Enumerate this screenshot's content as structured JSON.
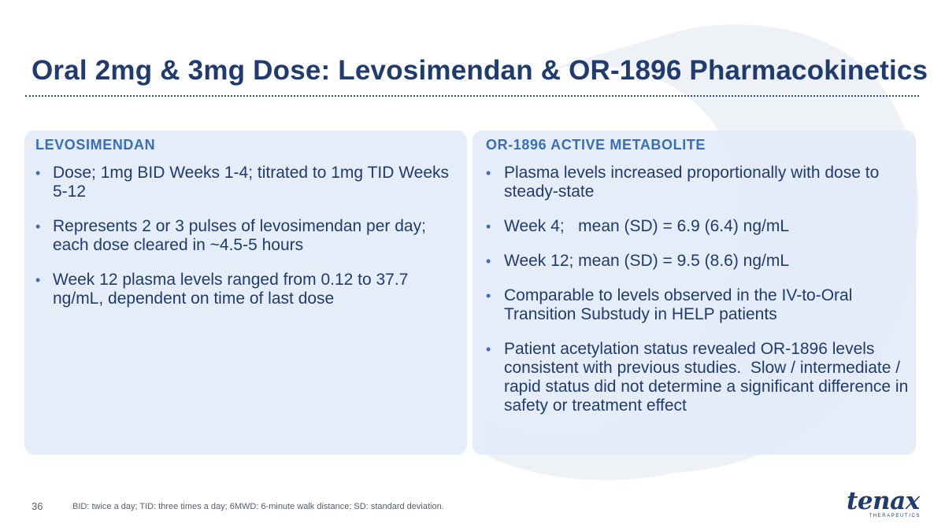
{
  "slide": {
    "title": "Oral 2mg & 3mg Dose: Levosimendan & OR-1896 Pharmacokinetics",
    "page_number": "36",
    "footnote": "BID: twice a day; TID: three times a day; 6MWD: 6-minute walk distance; SD: standard deviation."
  },
  "left_panel": {
    "heading": "LEVOSIMENDAN",
    "bullets": [
      "Dose; 1mg BID Weeks 1-4; titrated to 1mg TID Weeks 5-12",
      "Represents 2 or 3 pulses of levosimendan per day; each dose cleared in ~4.5-5 hours",
      "Week 12 plasma levels ranged from 0.12 to 37.7 ng/mL, dependent on time of last dose"
    ]
  },
  "right_panel": {
    "heading": "OR-1896 ACTIVE METABOLITE",
    "bullets": [
      "Plasma levels increased proportionally with dose to steady-state",
      "Week 4;   mean (SD) = 6.9 (6.4) ng/mL",
      "Week 12; mean (SD) = 9.5 (8.6) ng/mL",
      "Comparable to levels observed in the IV-to-Oral Transition Substudy in HELP patients",
      "Patient acetylation status revealed OR-1896 levels consistent with previous studies.  Slow / intermediate / rapid status did not determine a significant difference in safety or treatment effect"
    ]
  },
  "logo": {
    "wordmark": "tenax",
    "subtitle": "THERAPEUTICS"
  },
  "colors": {
    "title": "#1f3b70",
    "heading": "#3a6fb7",
    "panel_bg": "#e2ecf8",
    "watermark": "#eef1f5"
  },
  "icons": {
    "bullet": "bullet-dot-icon",
    "background_mark": "watermark-icon"
  }
}
